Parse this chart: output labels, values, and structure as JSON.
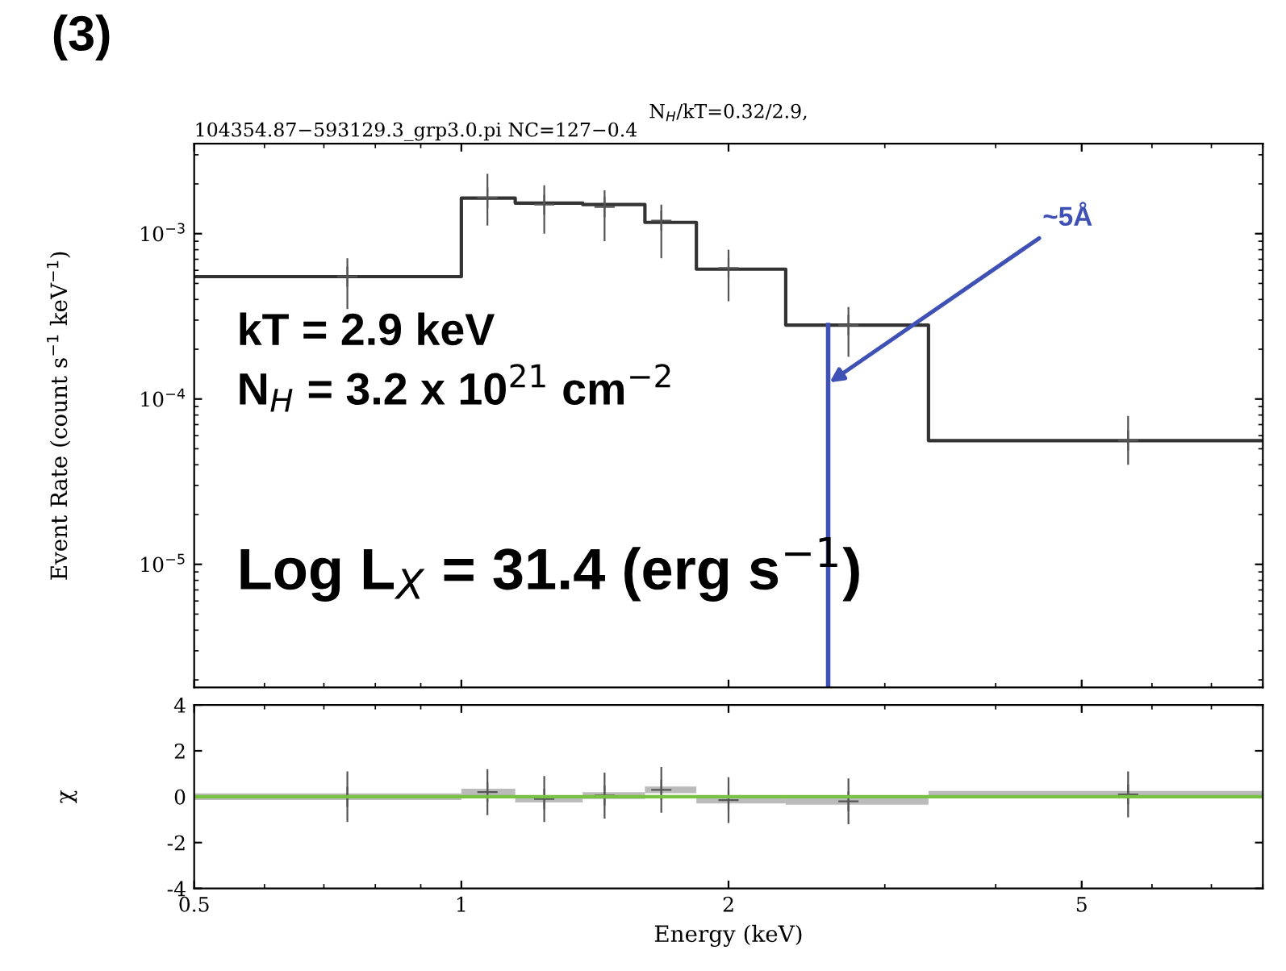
{
  "chart_data": [
    {
      "type": "step",
      "title": "(3)",
      "subtitle": [
        "N$_{H}$/kT=0.32/2.9,",
        "104354.87−593129.3_grp3.0.pi NC=127−0.4"
      ],
      "ylabel": "Event Rate (count s$^{−1}$ keV$^{−1}$)",
      "log": "xy",
      "xlim": [
        0.5,
        8
      ],
      "ylim": [
        1.8e-06,
        0.0035
      ],
      "xticks": [
        {
          "value": 0.5,
          "label": null
        },
        {
          "value": 1,
          "label": null
        },
        {
          "value": 2,
          "label": null
        },
        {
          "value": 5,
          "label": null
        }
      ],
      "yticks": [
        {
          "value": 1e-05,
          "label": "10$^{−5}$"
        },
        {
          "value": 0.0001,
          "label": "10$^{−4}$"
        },
        {
          "value": 0.001,
          "label": "10$^{−3}$"
        }
      ],
      "tick_labels": "y",
      "grid": false,
      "series": [
        {
          "color": "#333333",
          "x": [
            0.5,
            1.0,
            1.15,
            1.37,
            1.61,
            1.84,
            2.32,
            3.36,
            8.0
          ],
          "values": [
            0.00055,
            0.00164,
            0.00153,
            0.0015,
            0.00117,
            0.00061,
            0.00028,
            5.6e-05,
            5.6e-05
          ]
        },
        {
          "type": "scatter",
          "marker": "cross",
          "color": "#555555",
          "x": [
            0.744,
            1.07,
            1.24,
            1.45,
            1.68,
            2.0,
            2.73,
            5.64
          ],
          "values": [
            0.00055,
            0.00165,
            0.0015,
            0.00145,
            0.0012,
            0.00062,
            0.00028,
            5.6e-05
          ],
          "errors": [
            [
              0.00035,
              0.00071
            ],
            [
              0.00112,
              0.0023
            ],
            [
              0.001,
              0.00196
            ],
            [
              0.0009,
              0.00183
            ],
            [
              0.00071,
              0.0015
            ],
            [
              0.00039,
              0.0008
            ],
            [
              0.00018,
              0.00036
            ],
            [
              4e-05,
              7.9e-05
            ]
          ]
        },
        {
          "type": "line",
          "color": "#3f51b5",
          "x": [
            2.59,
            2.59
          ],
          "values": [
            0.00028,
            1.8e-06
          ]
        }
      ],
      "annotations": [
        {
          "text": "~5Å",
          "x": 2.6,
          "y": 0.000126
        },
        "kT = 2.9 keV",
        "N$_{H}$ = 3.2 x 10$^{21}$ cm$^{−2}$",
        "Log L$_{X}$ = 31.4 (erg s$^{−1}$)"
      ]
    },
    {
      "type": "scatter",
      "xlabel": "Energy (keV)",
      "ylabel": "χ",
      "log": "x",
      "xlim": [
        0.5,
        8
      ],
      "ylim": [
        -4,
        4
      ],
      "xticks": [
        0.5,
        1,
        2,
        5
      ],
      "yticks": [
        -4,
        -2,
        0,
        2,
        4
      ],
      "grid": false,
      "ref_lines": [
        {
          "axis": "y",
          "value": 0,
          "label": null,
          "color": "#7ac143"
        }
      ],
      "series": [
        {
          "marker": "cross",
          "color": "#555555",
          "x": [
            0.744,
            1.07,
            1.24,
            1.45,
            1.68,
            2.0,
            2.73,
            5.64
          ],
          "values": [
            0,
            0.2,
            -0.1,
            0.05,
            0.3,
            -0.15,
            -0.2,
            0.1
          ],
          "errors": [
            1.1,
            1,
            1,
            1,
            1,
            1,
            1,
            1
          ],
          "xerrors": [
            [
              0.5,
              1.0
            ],
            [
              1.0,
              1.15
            ],
            [
              1.15,
              1.37
            ],
            [
              1.37,
              1.61
            ],
            [
              1.61,
              1.84
            ],
            [
              1.84,
              2.32
            ],
            [
              2.32,
              3.36
            ],
            [
              3.36,
              8.0
            ]
          ]
        }
      ]
    }
  ]
}
